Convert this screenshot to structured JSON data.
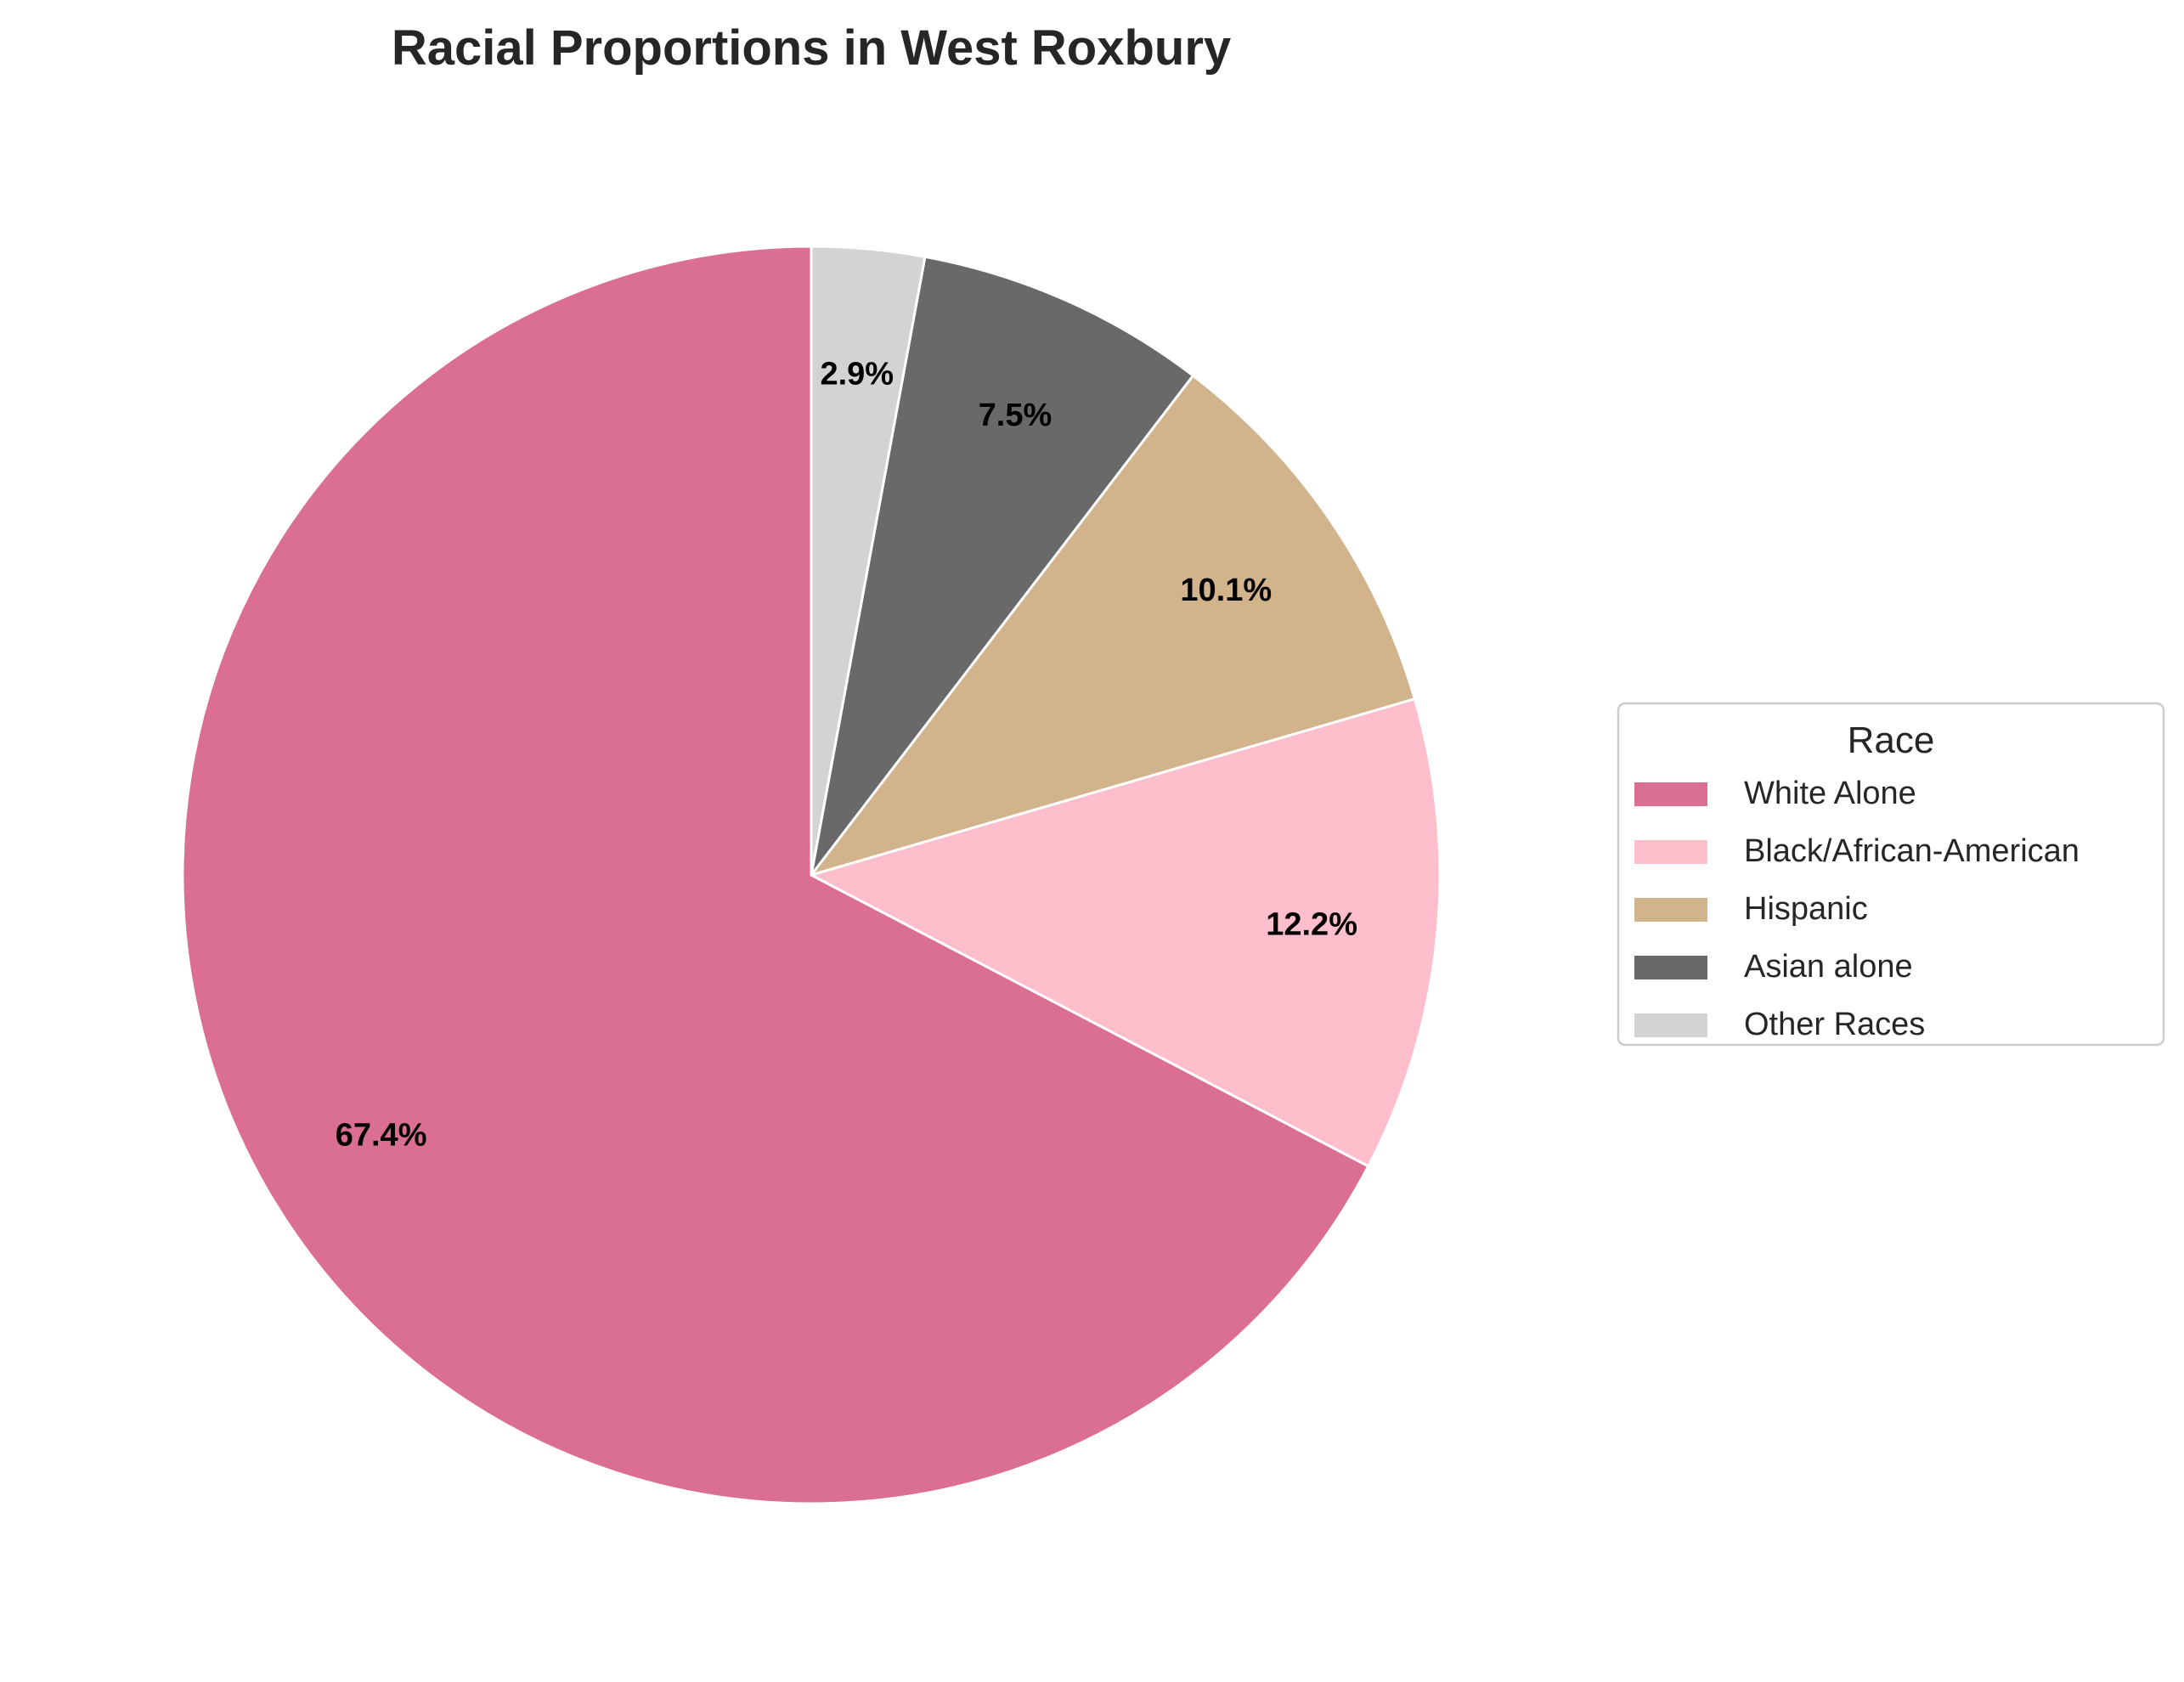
{
  "chart_data": {
    "type": "pie",
    "title": "Racial Proportions in West Roxbury",
    "legend_title": "Race",
    "legend_position": "center-right",
    "start_angle": "top",
    "direction": "clockwise",
    "slices": [
      {
        "label": "White Alone",
        "value": 67.4,
        "display": "67.4%",
        "color": "#DB6F91"
      },
      {
        "label": "Black/African-American",
        "value": 12.2,
        "display": "12.2%",
        "color": "#FFBECC"
      },
      {
        "label": "Hispanic",
        "value": 10.1,
        "display": "10.1%",
        "color": "#D2B48C"
      },
      {
        "label": "Asian alone",
        "value": 7.5,
        "display": "7.5%",
        "color": "#696969"
      },
      {
        "label": "Other Races",
        "value": 2.9,
        "display": "2.9%",
        "color": "#D3D3D3"
      }
    ]
  }
}
